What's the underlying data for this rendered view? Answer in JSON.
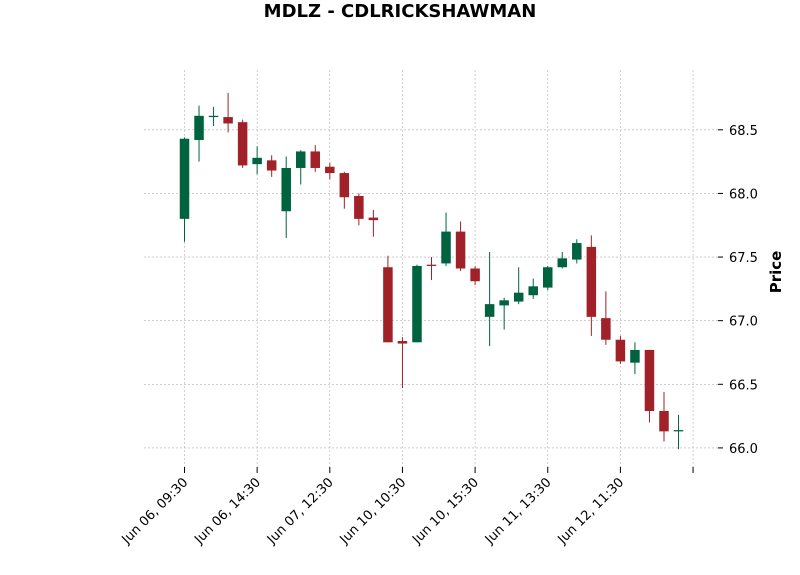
{
  "chart_data": {
    "type": "candlestick",
    "title": "MDLZ - CDLRICKSHAWMAN",
    "ylabel": "Price",
    "xlabel": "",
    "ylim": [
      65.85,
      68.97
    ],
    "yticks": [
      "66.0",
      "66.5",
      "67.0",
      "67.5",
      "68.0",
      "68.5"
    ],
    "xtick_labels": [
      {
        "index": 0,
        "label": "Jun 06, 09:30"
      },
      {
        "index": 5,
        "label": "Jun 06, 14:30"
      },
      {
        "index": 10,
        "label": "Jun 07, 12:30"
      },
      {
        "index": 15,
        "label": "Jun 10, 10:30"
      },
      {
        "index": 20,
        "label": "Jun 10, 15:30"
      },
      {
        "index": 25,
        "label": "Jun 11, 13:30"
      },
      {
        "index": 30,
        "label": "Jun 12, 11:30"
      },
      {
        "index": 35,
        "label": ""
      }
    ],
    "colors": {
      "up": "#006340",
      "down": "#a02128"
    },
    "grid": true,
    "candles": [
      {
        "o": 67.8,
        "h": 68.44,
        "l": 67.62,
        "c": 68.43
      },
      {
        "o": 68.42,
        "h": 68.69,
        "l": 68.25,
        "c": 68.61
      },
      {
        "o": 68.6,
        "h": 68.68,
        "l": 68.53,
        "c": 68.61
      },
      {
        "o": 68.6,
        "h": 68.79,
        "l": 68.48,
        "c": 68.55
      },
      {
        "o": 68.56,
        "h": 68.58,
        "l": 68.2,
        "c": 68.22
      },
      {
        "o": 68.23,
        "h": 68.37,
        "l": 68.15,
        "c": 68.28
      },
      {
        "o": 68.26,
        "h": 68.3,
        "l": 68.13,
        "c": 68.18
      },
      {
        "o": 67.86,
        "h": 68.29,
        "l": 67.65,
        "c": 68.2
      },
      {
        "o": 68.2,
        "h": 68.34,
        "l": 68.07,
        "c": 68.33
      },
      {
        "o": 68.33,
        "h": 68.38,
        "l": 68.17,
        "c": 68.2
      },
      {
        "o": 68.21,
        "h": 68.24,
        "l": 68.11,
        "c": 68.16
      },
      {
        "o": 68.16,
        "h": 68.17,
        "l": 67.88,
        "c": 67.97
      },
      {
        "o": 67.98,
        "h": 68.0,
        "l": 67.75,
        "c": 67.8
      },
      {
        "o": 67.81,
        "h": 67.87,
        "l": 67.66,
        "c": 67.79
      },
      {
        "o": 67.42,
        "h": 67.51,
        "l": 66.83,
        "c": 66.83
      },
      {
        "o": 66.84,
        "h": 66.87,
        "l": 66.47,
        "c": 66.82
      },
      {
        "o": 66.83,
        "h": 67.44,
        "l": 66.83,
        "c": 67.43
      },
      {
        "o": 67.44,
        "h": 67.5,
        "l": 67.32,
        "c": 67.43
      },
      {
        "o": 67.45,
        "h": 67.85,
        "l": 67.43,
        "c": 67.7
      },
      {
        "o": 67.7,
        "h": 67.78,
        "l": 67.39,
        "c": 67.41
      },
      {
        "o": 67.41,
        "h": 67.43,
        "l": 67.28,
        "c": 67.31
      },
      {
        "o": 67.03,
        "h": 67.54,
        "l": 66.8,
        "c": 67.13
      },
      {
        "o": 67.12,
        "h": 67.18,
        "l": 66.93,
        "c": 67.16
      },
      {
        "o": 67.15,
        "h": 67.42,
        "l": 67.13,
        "c": 67.22
      },
      {
        "o": 67.2,
        "h": 67.33,
        "l": 67.17,
        "c": 67.27
      },
      {
        "o": 67.26,
        "h": 67.43,
        "l": 67.24,
        "c": 67.42
      },
      {
        "o": 67.42,
        "h": 67.54,
        "l": 67.41,
        "c": 67.49
      },
      {
        "o": 67.48,
        "h": 67.64,
        "l": 67.45,
        "c": 67.61
      },
      {
        "o": 67.58,
        "h": 67.67,
        "l": 66.88,
        "c": 67.03
      },
      {
        "o": 67.02,
        "h": 67.23,
        "l": 66.81,
        "c": 66.85
      },
      {
        "o": 66.85,
        "h": 66.88,
        "l": 66.66,
        "c": 66.68
      },
      {
        "o": 66.67,
        "h": 66.83,
        "l": 66.58,
        "c": 66.77
      },
      {
        "o": 66.77,
        "h": 66.77,
        "l": 66.2,
        "c": 66.29
      },
      {
        "o": 66.29,
        "h": 66.44,
        "l": 66.05,
        "c": 66.13
      },
      {
        "o": 66.13,
        "h": 66.26,
        "l": 65.99,
        "c": 66.14
      }
    ]
  }
}
